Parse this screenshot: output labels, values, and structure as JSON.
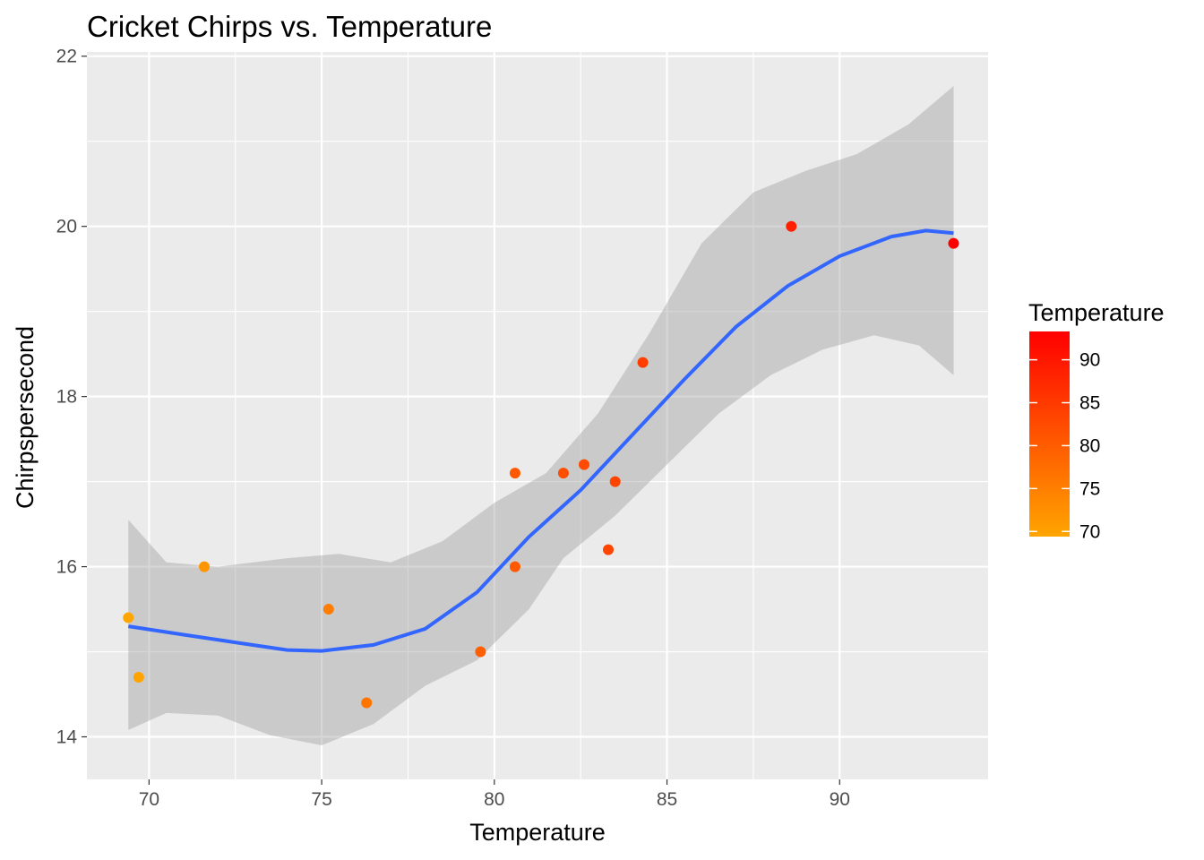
{
  "chart_data": {
    "type": "scatter",
    "title": "Cricket Chirps vs. Temperature",
    "xlabel": "Temperature",
    "ylabel": "Chirpspersecond",
    "xlim": [
      68.2,
      94.3
    ],
    "ylim": [
      13.5,
      22.05
    ],
    "x_ticks": [
      70,
      75,
      80,
      85,
      90
    ],
    "y_ticks": [
      14,
      16,
      18,
      20,
      22
    ],
    "grid": true,
    "points": [
      {
        "x": 88.6,
        "y": 20.0
      },
      {
        "x": 71.6,
        "y": 16.0
      },
      {
        "x": 93.3,
        "y": 19.8
      },
      {
        "x": 84.3,
        "y": 18.4
      },
      {
        "x": 80.6,
        "y": 17.1
      },
      {
        "x": 75.2,
        "y": 15.5
      },
      {
        "x": 69.7,
        "y": 14.7
      },
      {
        "x": 82.0,
        "y": 17.1
      },
      {
        "x": 69.4,
        "y": 15.4
      },
      {
        "x": 83.3,
        "y": 16.2
      },
      {
        "x": 79.6,
        "y": 15.0
      },
      {
        "x": 82.6,
        "y": 17.2
      },
      {
        "x": 80.6,
        "y": 16.0
      },
      {
        "x": 83.5,
        "y": 17.0
      },
      {
        "x": 76.3,
        "y": 14.4
      }
    ],
    "smooth_fit": {
      "method": "loess",
      "color": "#3366ff",
      "line": [
        {
          "x": 69.4,
          "y": 15.3
        },
        {
          "x": 71.0,
          "y": 15.2
        },
        {
          "x": 72.5,
          "y": 15.11
        },
        {
          "x": 74.0,
          "y": 15.02
        },
        {
          "x": 75.0,
          "y": 15.01
        },
        {
          "x": 76.5,
          "y": 15.08
        },
        {
          "x": 78.0,
          "y": 15.27
        },
        {
          "x": 79.5,
          "y": 15.7
        },
        {
          "x": 81.0,
          "y": 16.35
        },
        {
          "x": 82.5,
          "y": 16.9
        },
        {
          "x": 84.0,
          "y": 17.55
        },
        {
          "x": 85.5,
          "y": 18.2
        },
        {
          "x": 87.0,
          "y": 18.82
        },
        {
          "x": 88.5,
          "y": 19.3
        },
        {
          "x": 90.0,
          "y": 19.65
        },
        {
          "x": 91.5,
          "y": 19.88
        },
        {
          "x": 92.5,
          "y": 19.95
        },
        {
          "x": 93.3,
          "y": 19.92
        }
      ],
      "band_upper": [
        {
          "x": 69.4,
          "y": 16.55
        },
        {
          "x": 70.5,
          "y": 16.05
        },
        {
          "x": 72.0,
          "y": 16.0
        },
        {
          "x": 74.0,
          "y": 16.1
        },
        {
          "x": 75.5,
          "y": 16.15
        },
        {
          "x": 77.0,
          "y": 16.05
        },
        {
          "x": 78.5,
          "y": 16.3
        },
        {
          "x": 80.0,
          "y": 16.75
        },
        {
          "x": 81.5,
          "y": 17.1
        },
        {
          "x": 83.0,
          "y": 17.8
        },
        {
          "x": 84.5,
          "y": 18.75
        },
        {
          "x": 86.0,
          "y": 19.8
        },
        {
          "x": 87.5,
          "y": 20.4
        },
        {
          "x": 89.0,
          "y": 20.65
        },
        {
          "x": 90.5,
          "y": 20.85
        },
        {
          "x": 92.0,
          "y": 21.2
        },
        {
          "x": 93.3,
          "y": 21.65
        }
      ],
      "band_lower": [
        {
          "x": 69.4,
          "y": 14.08
        },
        {
          "x": 70.5,
          "y": 14.28
        },
        {
          "x": 72.0,
          "y": 14.25
        },
        {
          "x": 73.5,
          "y": 14.02
        },
        {
          "x": 75.0,
          "y": 13.9
        },
        {
          "x": 76.5,
          "y": 14.15
        },
        {
          "x": 78.0,
          "y": 14.6
        },
        {
          "x": 79.5,
          "y": 14.9
        },
        {
          "x": 81.0,
          "y": 15.5
        },
        {
          "x": 82.0,
          "y": 16.1
        },
        {
          "x": 83.5,
          "y": 16.6
        },
        {
          "x": 85.0,
          "y": 17.2
        },
        {
          "x": 86.5,
          "y": 17.8
        },
        {
          "x": 88.0,
          "y": 18.25
        },
        {
          "x": 89.5,
          "y": 18.55
        },
        {
          "x": 91.0,
          "y": 18.72
        },
        {
          "x": 92.3,
          "y": 18.6
        },
        {
          "x": 93.3,
          "y": 18.25
        }
      ]
    },
    "legend": {
      "title": "Temperature",
      "placement": "right",
      "type": "colorbar",
      "low_color": "#ffa500",
      "high_color": "#ff0000",
      "range": [
        69.4,
        93.3
      ],
      "breaks": [
        70,
        75,
        80,
        85,
        90
      ]
    },
    "colors": {
      "panel_background": "#ebebeb",
      "grid": "#ffffff",
      "band": "#999999"
    }
  }
}
